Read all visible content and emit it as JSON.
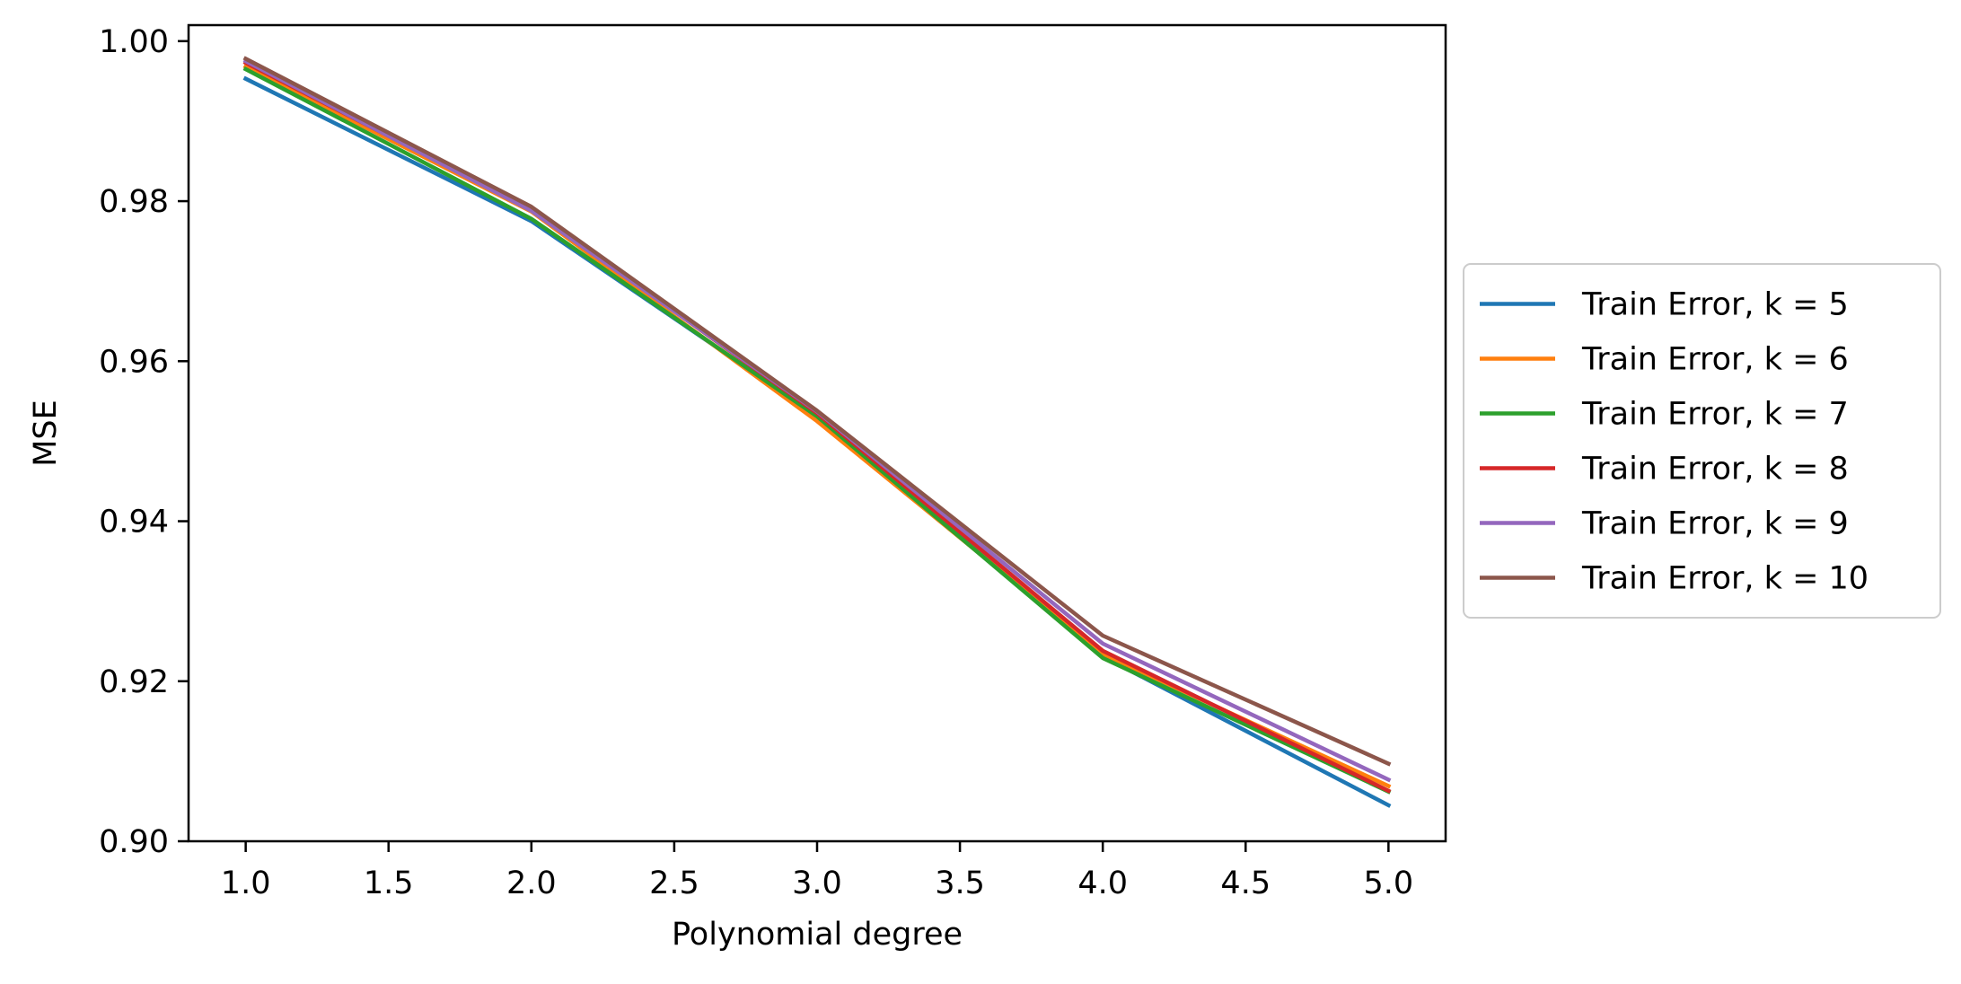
{
  "chart_data": {
    "type": "line",
    "title": "",
    "xlabel": "Polynomial degree",
    "ylabel": "MSE",
    "xlim": [
      0.8,
      5.2
    ],
    "ylim": [
      0.9,
      1.002
    ],
    "x_ticks": [
      1.0,
      1.5,
      2.0,
      2.5,
      3.0,
      3.5,
      4.0,
      4.5,
      5.0
    ],
    "x_tick_labels": [
      "1.0",
      "1.5",
      "2.0",
      "2.5",
      "3.0",
      "3.5",
      "4.0",
      "4.5",
      "5.0"
    ],
    "y_ticks": [
      0.9,
      0.92,
      0.94,
      0.96,
      0.98,
      1.0
    ],
    "y_tick_labels": [
      "0.90",
      "0.92",
      "0.94",
      "0.96",
      "0.98",
      "1.00"
    ],
    "grid": false,
    "legend_position": "outside-right",
    "x": [
      1,
      2,
      3,
      4,
      5
    ],
    "series": [
      {
        "name": "Train Error, k = 5",
        "color": "#1f77b4",
        "values": [
          0.9953,
          0.9775,
          0.9532,
          0.9231,
          0.9045
        ]
      },
      {
        "name": "Train Error, k = 6",
        "color": "#ff7f0e",
        "values": [
          0.9968,
          0.9787,
          0.9525,
          0.9234,
          0.9069
        ]
      },
      {
        "name": "Train Error, k = 7",
        "color": "#2ca02c",
        "values": [
          0.9965,
          0.9778,
          0.9531,
          0.9229,
          0.9062
        ]
      },
      {
        "name": "Train Error, k = 8",
        "color": "#d62728",
        "values": [
          0.9973,
          0.979,
          0.9535,
          0.9238,
          0.9063
        ]
      },
      {
        "name": "Train Error, k = 9",
        "color": "#9467bd",
        "values": [
          0.9975,
          0.9788,
          0.9537,
          0.9247,
          0.9077
        ]
      },
      {
        "name": "Train Error, k = 10",
        "color": "#8c564b",
        "values": [
          0.9978,
          0.9793,
          0.9538,
          0.9257,
          0.9097
        ]
      }
    ]
  }
}
